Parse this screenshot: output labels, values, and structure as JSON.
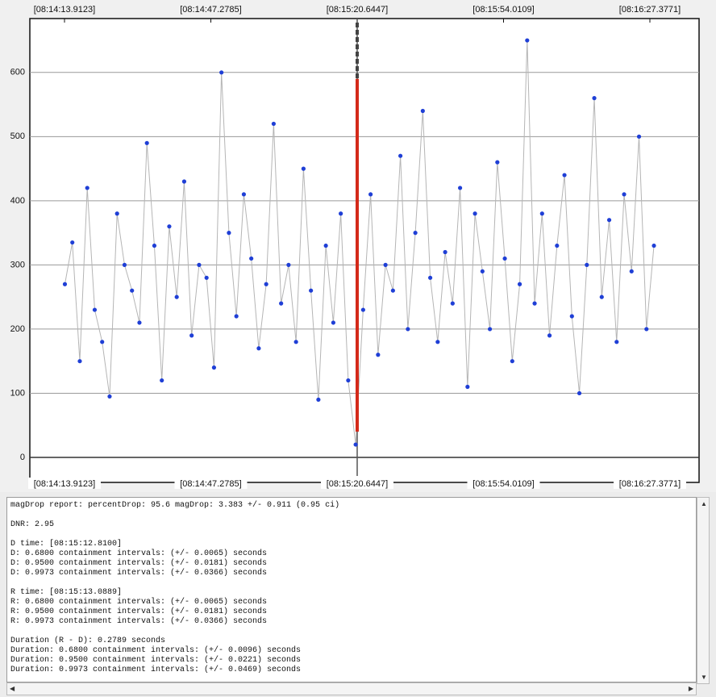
{
  "chart_data": {
    "type": "line",
    "x": [
      29654.0,
      29655.7,
      29657.4,
      29659.1,
      29660.8,
      29662.5,
      29664.2,
      29665.9,
      29667.6,
      29669.3,
      29671.0,
      29672.7,
      29674.4,
      29676.1,
      29677.8,
      29679.5,
      29681.2,
      29682.9,
      29684.6,
      29686.3,
      29688.0,
      29689.7,
      29691.4,
      29693.1,
      29694.8,
      29696.5,
      29698.2,
      29699.9,
      29701.6,
      29703.3,
      29705.0,
      29706.7,
      29708.4,
      29710.1,
      29711.8,
      29713.5,
      29715.2,
      29716.9,
      29718.6,
      29720.3,
      29722.0,
      29723.7,
      29725.4,
      29727.1,
      29728.8,
      29730.5,
      29732.2,
      29733.9,
      29735.6,
      29737.3,
      29739.0,
      29740.7,
      29742.4,
      29744.1,
      29745.8,
      29747.5,
      29749.2,
      29750.9,
      29752.6,
      29754.3,
      29756.0,
      29757.7,
      29759.4,
      29761.1,
      29762.8,
      29764.5,
      29766.2,
      29767.9,
      29769.6,
      29771.3,
      29773.0,
      29774.7,
      29776.4,
      29778.1,
      29779.8,
      29781.5,
      29783.2,
      29784.9,
      29786.6,
      29788.3
    ],
    "series": [
      {
        "color": "#1f3fd6",
        "values": [
          270,
          335,
          150,
          420,
          230,
          180,
          95,
          380,
          300,
          260,
          210,
          490,
          330,
          120,
          360,
          250,
          430,
          190,
          300,
          280,
          140,
          600,
          350,
          220,
          410,
          310,
          170,
          270,
          520,
          240,
          300,
          180,
          450,
          260,
          90,
          330,
          210,
          380,
          120,
          20,
          230,
          410,
          160,
          300,
          260,
          470,
          200,
          350,
          540,
          280,
          180,
          320,
          240,
          420,
          110,
          380,
          290,
          200,
          460,
          310,
          150,
          270,
          650,
          240,
          380,
          190,
          330,
          440,
          220,
          100,
          300,
          560,
          250,
          370,
          180,
          410,
          290,
          500,
          200,
          330
        ]
      }
    ],
    "xlim": [
      29646.01,
      29798.59
    ],
    "xticks": [
      {
        "value": 29653.9123,
        "label": "[08:14:13.9123]"
      },
      {
        "value": 29687.2785,
        "label": "[08:14:47.2785]"
      },
      {
        "value": 29720.6447,
        "label": "[08:15:20.6447]"
      },
      {
        "value": 29754.0109,
        "label": "[08:15:54.0109]"
      },
      {
        "value": 29787.3771,
        "label": "[08:16:27.3771]"
      }
    ],
    "ylim": [
      -39,
      684
    ],
    "yticks": [
      0,
      100,
      200,
      300,
      400,
      500,
      600
    ],
    "grid": true
  },
  "report": {
    "blocks": [
      [
        "magDrop report: percentDrop: 95.6 magDrop: 3.383 +/- 0.911 (0.95 ci)"
      ],
      [
        "DNR: 2.95"
      ],
      [
        "D time: [08:15:12.8100]",
        "D: 0.6800 containment intervals: (+/- 0.0065) seconds",
        "D: 0.9500 containment intervals: (+/- 0.0181) seconds",
        "D: 0.9973 containment intervals: (+/- 0.0366) seconds"
      ],
      [
        "R time: [08:15:13.0889]",
        "R: 0.6800 containment intervals: (+/- 0.0065) seconds",
        "R: 0.9500 containment intervals: (+/- 0.0181) seconds",
        "R: 0.9973 containment intervals: (+/- 0.0366) seconds"
      ],
      [
        "Duration (R - D): 0.2789 seconds",
        "Duration: 0.6800 containment intervals: (+/- 0.0096) seconds",
        "Duration: 0.9500 containment intervals: (+/- 0.0221) seconds",
        "Duration: 0.9973 containment intervals: (+/- 0.0469) seconds"
      ]
    ]
  }
}
